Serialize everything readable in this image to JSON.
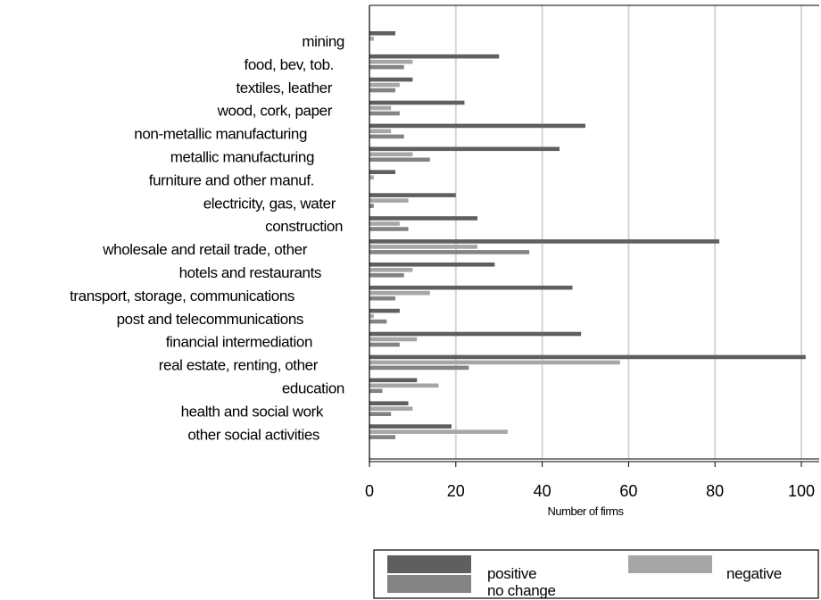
{
  "chart_data": {
    "type": "bar",
    "orientation": "horizontal",
    "categories": [
      "mining",
      "food, bev, tob.",
      "textiles, leather",
      "wood, cork, paper",
      "non-metallic manufacturing",
      "metallic manufacturing",
      "furniture and other manuf.",
      "electricity, gas, water",
      "construction",
      "wholesale and retail trade, other",
      "hotels and restaurants",
      "transport, storage, communications",
      "post and telecommunications",
      "financial intermediation",
      "real estate, renting, other",
      "education",
      "health and social work",
      "other social activities"
    ],
    "series": [
      {
        "name": "positive",
        "color": "#5f5f5f",
        "values": [
          6,
          30,
          10,
          22,
          50,
          44,
          6,
          20,
          25,
          81,
          29,
          47,
          7,
          49,
          101,
          11,
          9,
          19
        ]
      },
      {
        "name": "negative",
        "color": "#a6a6a6",
        "values": [
          1,
          10,
          7,
          5,
          5,
          10,
          1,
          9,
          7,
          25,
          10,
          14,
          1,
          11,
          58,
          16,
          10,
          32
        ]
      },
      {
        "name": "no change",
        "color": "#838383",
        "values": [
          0,
          8,
          6,
          7,
          8,
          14,
          0,
          1,
          9,
          37,
          8,
          6,
          4,
          7,
          23,
          3,
          5,
          6
        ]
      }
    ],
    "xlabel": "Number of firms",
    "ylabel": "",
    "xlim": [
      0,
      104
    ],
    "xticks": [
      0,
      20,
      40,
      60,
      80,
      100
    ],
    "grid": true,
    "legend_placement": "bottom"
  }
}
